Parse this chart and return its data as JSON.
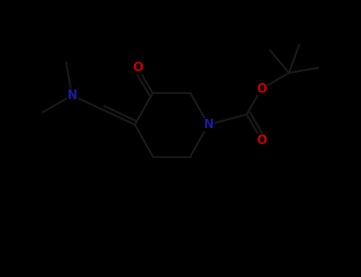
{
  "background_color": "#000000",
  "bond_color": "#1a1a1a",
  "n_color": "#1C1CA0",
  "o_color": "#CC0000",
  "line_width": 1.8,
  "figsize": [
    4.55,
    3.5
  ],
  "dpi": 100,
  "xlim": [
    0,
    9.1
  ],
  "ylim": [
    0,
    7.0
  ]
}
